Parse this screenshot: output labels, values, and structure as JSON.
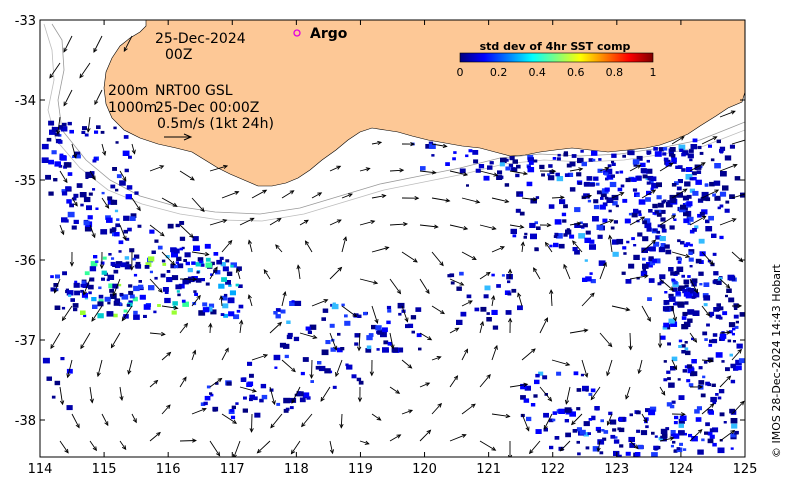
{
  "map": {
    "date_line1": "25-Dec-2024",
    "date_line2": "00Z",
    "legend_200m": "200m",
    "legend_1000m": "1000m",
    "model_label": "NRT00 GSL",
    "model_time": "25-Dec 00:00Z",
    "scale_label": "0.5m/s (1kt 24h)",
    "argo_label": "Argo",
    "credit": "© IMOS 28-Dec-2024 14:43 Hobart",
    "colors": {
      "land": "#fdc896",
      "argo_marker": "#e000e0",
      "arrow": "#000000",
      "contour": "#9a9a9a"
    }
  },
  "colorbar": {
    "title": "std dev of 4hr SST comp",
    "ticks": [
      "0",
      "0.2",
      "0.4",
      "0.6",
      "0.8",
      "1"
    ],
    "colors": [
      "#00007f",
      "#0000ff",
      "#007fff",
      "#00ffff",
      "#7fff7f",
      "#ffff00",
      "#ff7f00",
      "#ff0000",
      "#7f0000"
    ]
  },
  "axes": {
    "x_ticks": [
      "114",
      "115",
      "116",
      "117",
      "118",
      "119",
      "120",
      "121",
      "122",
      "123",
      "124",
      "125"
    ],
    "y_ticks": [
      "-33",
      "-34",
      "-35",
      "-36",
      "-37",
      "-38"
    ]
  }
}
